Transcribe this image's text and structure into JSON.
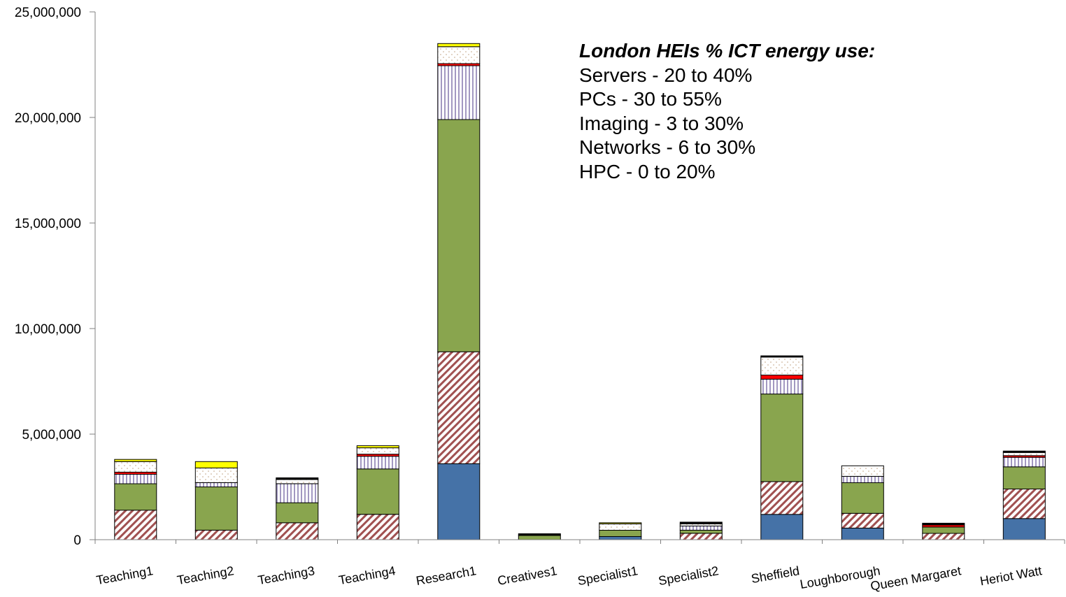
{
  "chart_data": {
    "type": "bar",
    "stacked": true,
    "categories": [
      "Teaching1",
      "Teaching2",
      "Teaching3",
      "Teaching4",
      "Research1",
      "Creatives1",
      "Specialist1",
      "Specialist2",
      "Sheffield",
      "Loughborough",
      "Queen Margaret",
      "Heriot Watt"
    ],
    "ylim": [
      0,
      25000000
    ],
    "yticks": [
      "0",
      "5,000,000",
      "10,000,000",
      "15,000,000",
      "20,000,000",
      "25,000,000"
    ],
    "ytick_values": [
      0,
      5000000,
      10000000,
      15000000,
      20000000,
      25000000
    ],
    "grid": false,
    "series": [
      {
        "color": "#4572a7",
        "pattern": "solid",
        "values": [
          0,
          0,
          0,
          0,
          3600000,
          0,
          150000,
          0,
          1200000,
          550000,
          0,
          1000000
        ]
      },
      {
        "color": "#a05050",
        "pattern": "diagonal-hatch",
        "values": [
          1400000,
          450000,
          800000,
          1200000,
          5300000,
          0,
          0,
          300000,
          1550000,
          700000,
          300000,
          1400000
        ]
      },
      {
        "color": "#89a54e",
        "pattern": "solid",
        "values": [
          1250000,
          2050000,
          950000,
          2150000,
          11000000,
          200000,
          300000,
          150000,
          4150000,
          1450000,
          300000,
          1050000
        ]
      },
      {
        "color": "#7060a0",
        "pattern": "vertical-stripes",
        "values": [
          450000,
          200000,
          900000,
          600000,
          2550000,
          0,
          0,
          200000,
          700000,
          300000,
          0,
          450000
        ]
      },
      {
        "color": "#ff0000",
        "pattern": "solid",
        "values": [
          100000,
          0,
          0,
          100000,
          100000,
          0,
          0,
          0,
          200000,
          0,
          100000,
          80000
        ]
      },
      {
        "color": "#c0a080",
        "pattern": "dots",
        "values": [
          500000,
          700000,
          200000,
          300000,
          800000,
          0,
          300000,
          100000,
          850000,
          500000,
          0,
          150000
        ]
      },
      {
        "color": "#ffff00",
        "pattern": "solid",
        "values": [
          100000,
          300000,
          0,
          100000,
          150000,
          0,
          50000,
          0,
          0,
          0,
          0,
          0
        ]
      },
      {
        "color": "#000000",
        "pattern": "solid",
        "values": [
          0,
          0,
          80000,
          0,
          0,
          80000,
          0,
          80000,
          60000,
          0,
          80000,
          70000
        ]
      }
    ],
    "annotation": {
      "title": "London HEIs % ICT energy use:",
      "lines": [
        "Servers - 20 to 40%",
        "PCs - 30 to 55%",
        "Imaging - 3 to 30%",
        "Networks - 6 to 30%",
        "HPC - 0 to 20%"
      ]
    }
  }
}
